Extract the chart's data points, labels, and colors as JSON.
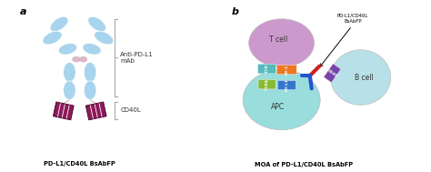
{
  "panel_a_label": "a",
  "panel_b_label": "b",
  "antibody_color": "#a8d4ed",
  "cd40l_color": "#8b1a5a",
  "label_anti_pd_l1": "Anti-PD-L1\nmAb",
  "label_cd40l": "CD40L",
  "label_bottom_a": "PD-L1/CD40L BsAbFP",
  "label_bottom_b": "MOA of PD-L1/CD40L BsAbFP",
  "tcell_color": "#cc99cc",
  "apc_color": "#99dddd",
  "bcell_color": "#b8e0e8",
  "tcr_color": "#55bbbb",
  "pd1_color": "#ee7722",
  "tcra_color": "#88bb33",
  "pdl1_color": "#3377cc",
  "cd40_color": "#7744aa",
  "ab_red_color": "#cc2222",
  "ab_blue_color": "#2255cc",
  "arrow_label": "PD-L1/CD40L\nBsAbFP",
  "tcell_label": "T cell",
  "apc_label": "APC",
  "bcell_label": "B cell",
  "tcr_label": "TCR",
  "pd1_label": "PD-1",
  "tcra_label": "TCRA",
  "pdl1_label": "PD-L1",
  "cd40_label": "CD40",
  "background": "#ffffff",
  "bracket_color": "#aaaaaa",
  "stripe_color": "#660033",
  "hinge_color": "#ddbbcc"
}
